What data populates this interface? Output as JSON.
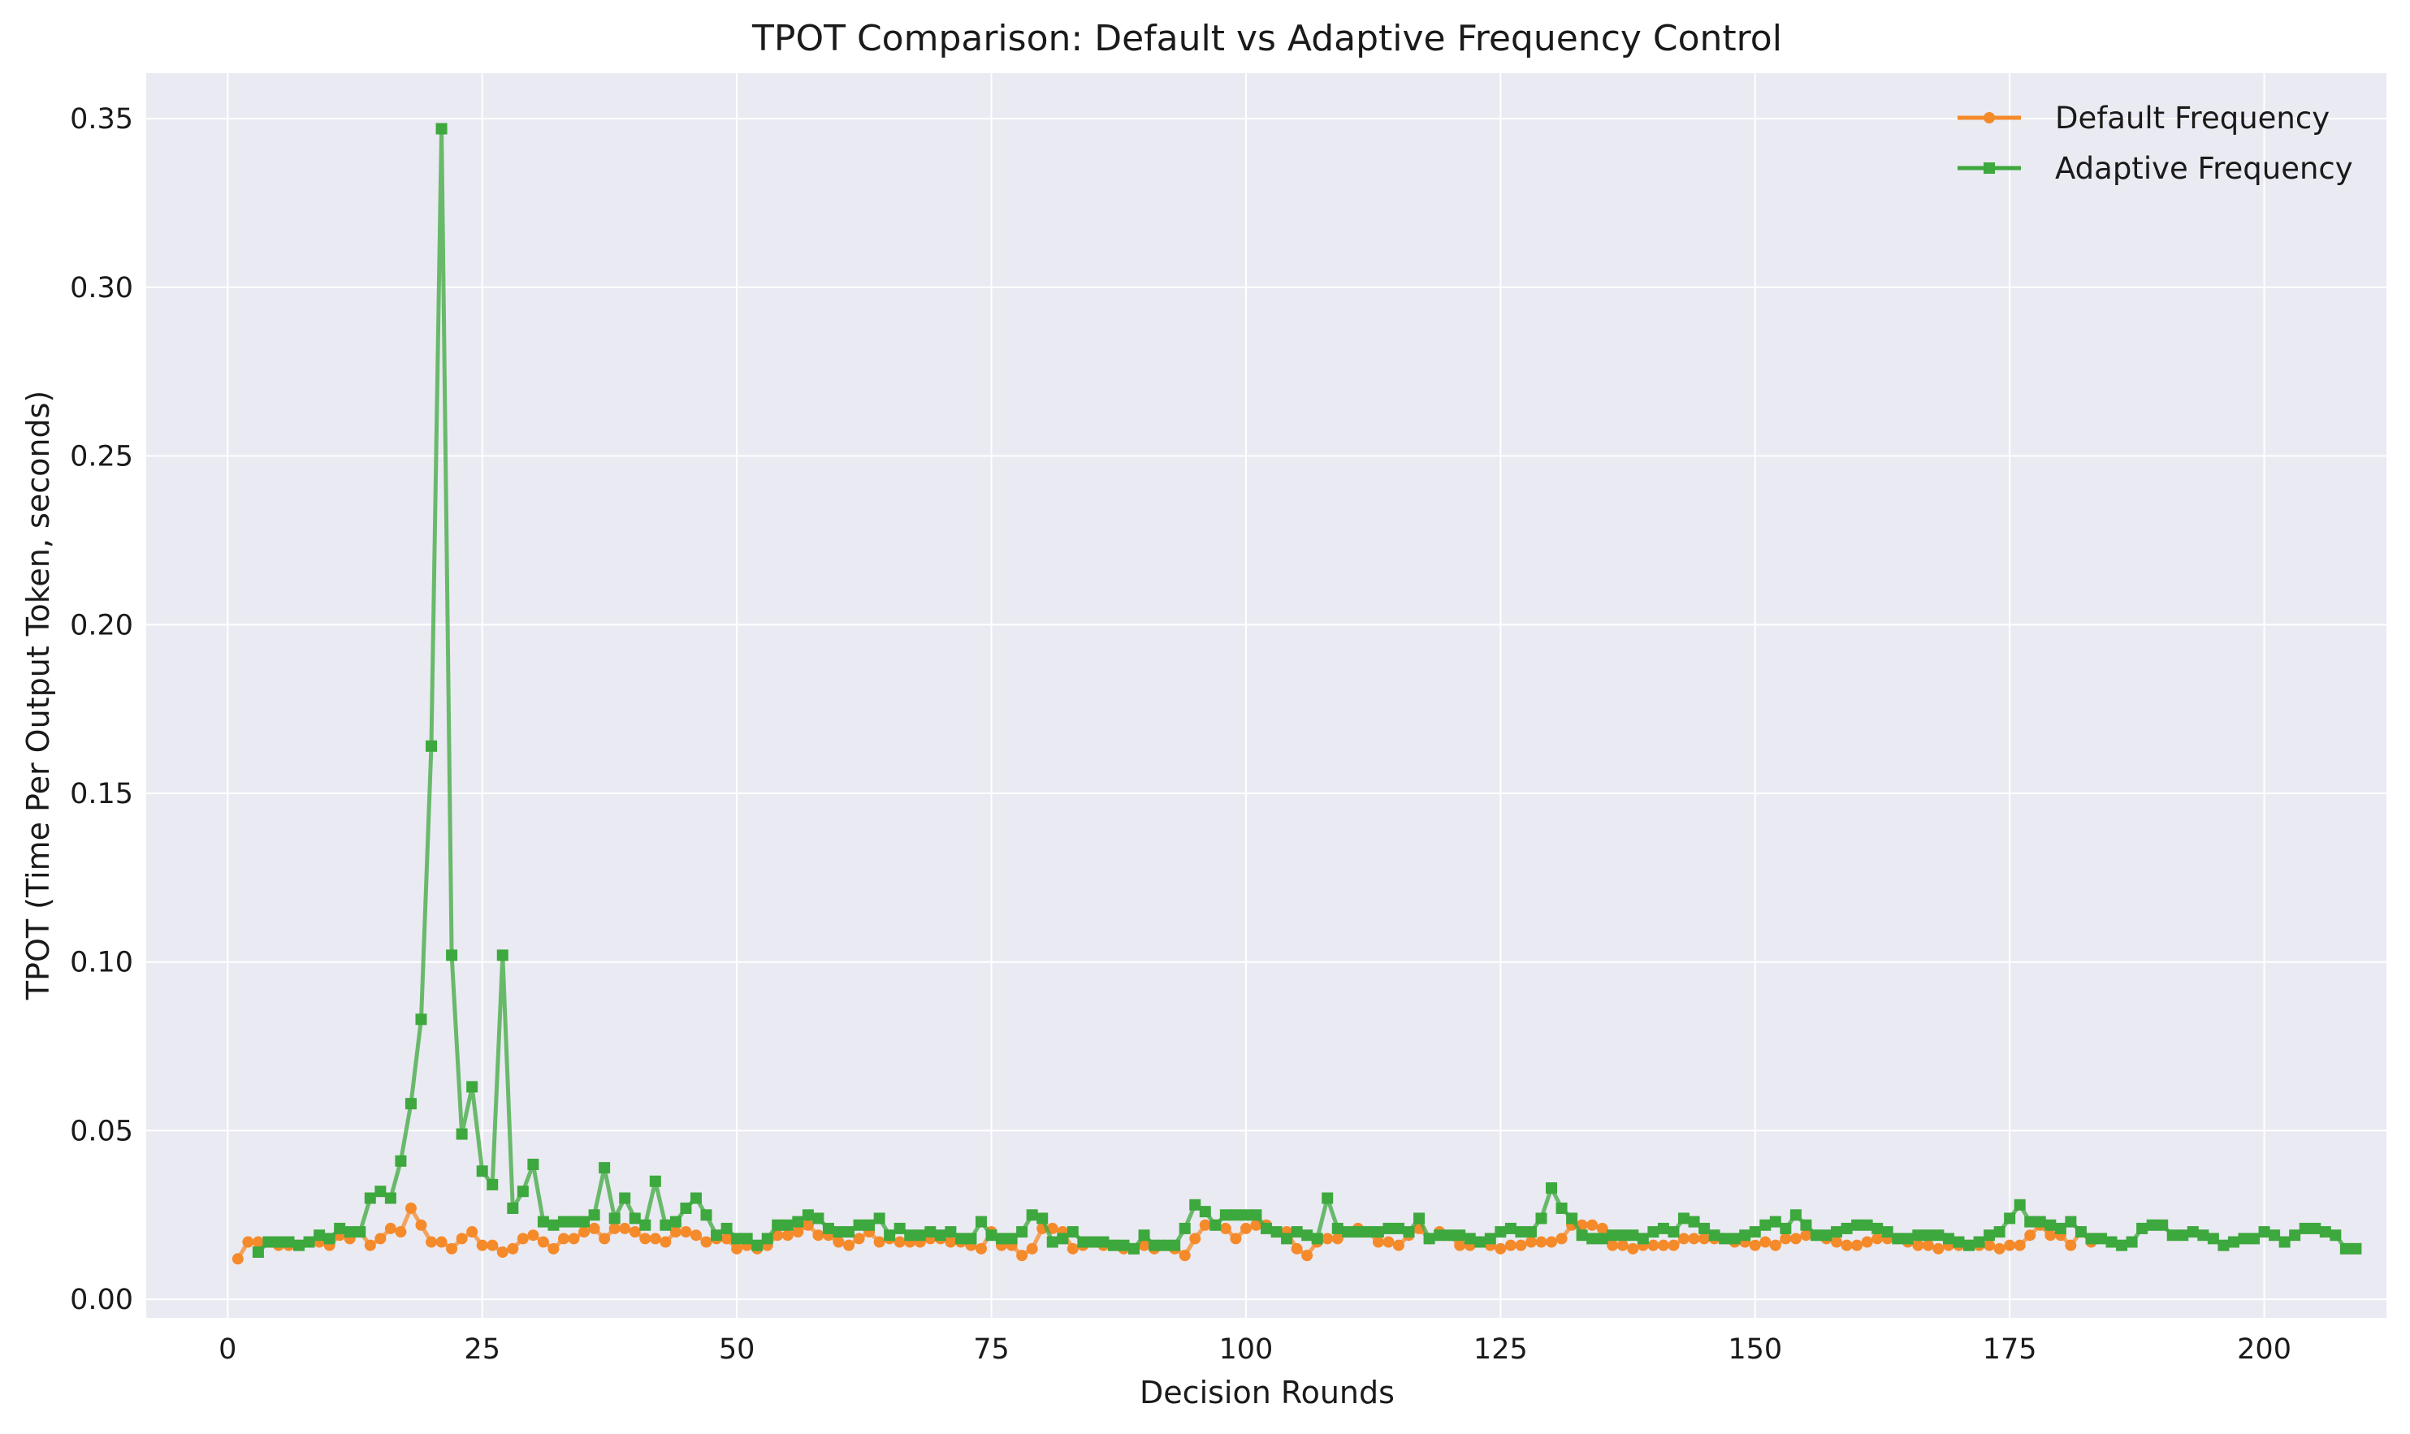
{
  "chart_data": {
    "type": "line",
    "title": "TPOT Comparison: Default vs Adaptive Frequency Control",
    "xlabel": "Decision Rounds",
    "ylabel": "TPOT (Time Per Output Token, seconds)",
    "xlim": [
      -8,
      212
    ],
    "ylim": [
      -0.0055,
      0.3635
    ],
    "xticks": [
      0,
      25,
      50,
      75,
      100,
      125,
      150,
      175,
      200
    ],
    "yticks": [
      0.0,
      0.05,
      0.1,
      0.15,
      0.2,
      0.25,
      0.3,
      0.35
    ],
    "xtick_labels": [
      "0",
      "25",
      "50",
      "75",
      "100",
      "125",
      "150",
      "175",
      "200"
    ],
    "ytick_labels": [
      "0.00",
      "0.05",
      "0.10",
      "0.15",
      "0.20",
      "0.25",
      "0.30",
      "0.35"
    ],
    "grid": true,
    "legend_position": "top-right",
    "series": [
      {
        "name": "Default Frequency",
        "color": "#f58a2a",
        "marker": "circle",
        "x_start": 1,
        "values": [
          0.012,
          0.017,
          0.017,
          0.017,
          0.016,
          0.016,
          0.016,
          0.017,
          0.017,
          0.016,
          0.019,
          0.018,
          0.02,
          0.016,
          0.018,
          0.021,
          0.02,
          0.027,
          0.022,
          0.017,
          0.017,
          0.015,
          0.018,
          0.02,
          0.016,
          0.016,
          0.014,
          0.015,
          0.018,
          0.019,
          0.017,
          0.015,
          0.018,
          0.018,
          0.02,
          0.021,
          0.018,
          0.021,
          0.021,
          0.02,
          0.018,
          0.018,
          0.017,
          0.02,
          0.02,
          0.019,
          0.017,
          0.018,
          0.018,
          0.015,
          0.016,
          0.015,
          0.016,
          0.019,
          0.019,
          0.02,
          0.022,
          0.019,
          0.019,
          0.017,
          0.016,
          0.018,
          0.02,
          0.017,
          0.018,
          0.017,
          0.017,
          0.017,
          0.018,
          0.018,
          0.017,
          0.017,
          0.016,
          0.015,
          0.02,
          0.016,
          0.016,
          0.013,
          0.015,
          0.021,
          0.021,
          0.02,
          0.015,
          0.016,
          0.017,
          0.016,
          0.016,
          0.015,
          0.015,
          0.016,
          0.015,
          0.016,
          0.015,
          0.013,
          0.018,
          0.022,
          0.022,
          0.021,
          0.018,
          0.021,
          0.022,
          0.022,
          0.02,
          0.02,
          0.015,
          0.013,
          0.017,
          0.018,
          0.018,
          0.02,
          0.021,
          0.02,
          0.017,
          0.017,
          0.016,
          0.019,
          0.021,
          0.018,
          0.02,
          0.019,
          0.016,
          0.016,
          0.017,
          0.016,
          0.015,
          0.016,
          0.016,
          0.017,
          0.017,
          0.017,
          0.018,
          0.022,
          0.022,
          0.022,
          0.021,
          0.016,
          0.016,
          0.015,
          0.016,
          0.016,
          0.016,
          0.016,
          0.018,
          0.018,
          0.018,
          0.018,
          0.018,
          0.017,
          0.017,
          0.016,
          0.017,
          0.016,
          0.018,
          0.018,
          0.019,
          0.019,
          0.018,
          0.017,
          0.016,
          0.016,
          0.017,
          0.018,
          0.018,
          0.018,
          0.017,
          0.016,
          0.016,
          0.015,
          0.016,
          0.016,
          0.016,
          0.016,
          0.016,
          0.015,
          0.016,
          0.016,
          0.019,
          0.022,
          0.019,
          0.019,
          0.016,
          0.02,
          0.017
        ]
      },
      {
        "name": "Adaptive Frequency",
        "color": "#3da83d",
        "marker": "square",
        "x_start": 3,
        "values": [
          0.014,
          0.017,
          0.017,
          0.017,
          0.016,
          0.017,
          0.019,
          0.018,
          0.021,
          0.02,
          0.02,
          0.03,
          0.032,
          0.03,
          0.041,
          0.058,
          0.083,
          0.164,
          0.347,
          0.102,
          0.049,
          0.063,
          0.038,
          0.034,
          0.102,
          0.027,
          0.032,
          0.04,
          0.023,
          0.022,
          0.023,
          0.023,
          0.023,
          0.025,
          0.039,
          0.024,
          0.03,
          0.024,
          0.022,
          0.035,
          0.022,
          0.023,
          0.027,
          0.03,
          0.025,
          0.019,
          0.021,
          0.018,
          0.018,
          0.016,
          0.018,
          0.022,
          0.022,
          0.023,
          0.025,
          0.024,
          0.021,
          0.02,
          0.02,
          0.022,
          0.022,
          0.024,
          0.019,
          0.021,
          0.019,
          0.019,
          0.02,
          0.019,
          0.02,
          0.018,
          0.018,
          0.023,
          0.019,
          0.018,
          0.018,
          0.02,
          0.025,
          0.024,
          0.017,
          0.018,
          0.02,
          0.017,
          0.017,
          0.017,
          0.016,
          0.016,
          0.015,
          0.019,
          0.016,
          0.016,
          0.016,
          0.021,
          0.028,
          0.026,
          0.022,
          0.025,
          0.025,
          0.025,
          0.025,
          0.021,
          0.02,
          0.018,
          0.02,
          0.019,
          0.018,
          0.03,
          0.021,
          0.02,
          0.02,
          0.02,
          0.02,
          0.021,
          0.021,
          0.02,
          0.024,
          0.018,
          0.019,
          0.019,
          0.019,
          0.018,
          0.017,
          0.018,
          0.02,
          0.021,
          0.02,
          0.02,
          0.024,
          0.033,
          0.027,
          0.024,
          0.019,
          0.018,
          0.018,
          0.019,
          0.019,
          0.019,
          0.018,
          0.02,
          0.021,
          0.02,
          0.024,
          0.023,
          0.021,
          0.019,
          0.018,
          0.018,
          0.019,
          0.02,
          0.022,
          0.023,
          0.021,
          0.025,
          0.022,
          0.019,
          0.019,
          0.02,
          0.021,
          0.022,
          0.022,
          0.021,
          0.02,
          0.018,
          0.018,
          0.019,
          0.019,
          0.019,
          0.018,
          0.017,
          0.016,
          0.017,
          0.019,
          0.02,
          0.024,
          0.028,
          0.023,
          0.023,
          0.022,
          0.021,
          0.023,
          0.02,
          0.018,
          0.018,
          0.017,
          0.016,
          0.017,
          0.021,
          0.022,
          0.022,
          0.019,
          0.019,
          0.02,
          0.019,
          0.018,
          0.016,
          0.017,
          0.018,
          0.018,
          0.02,
          0.019,
          0.017,
          0.019,
          0.021,
          0.021,
          0.02,
          0.019,
          0.015,
          0.015
        ]
      }
    ]
  }
}
